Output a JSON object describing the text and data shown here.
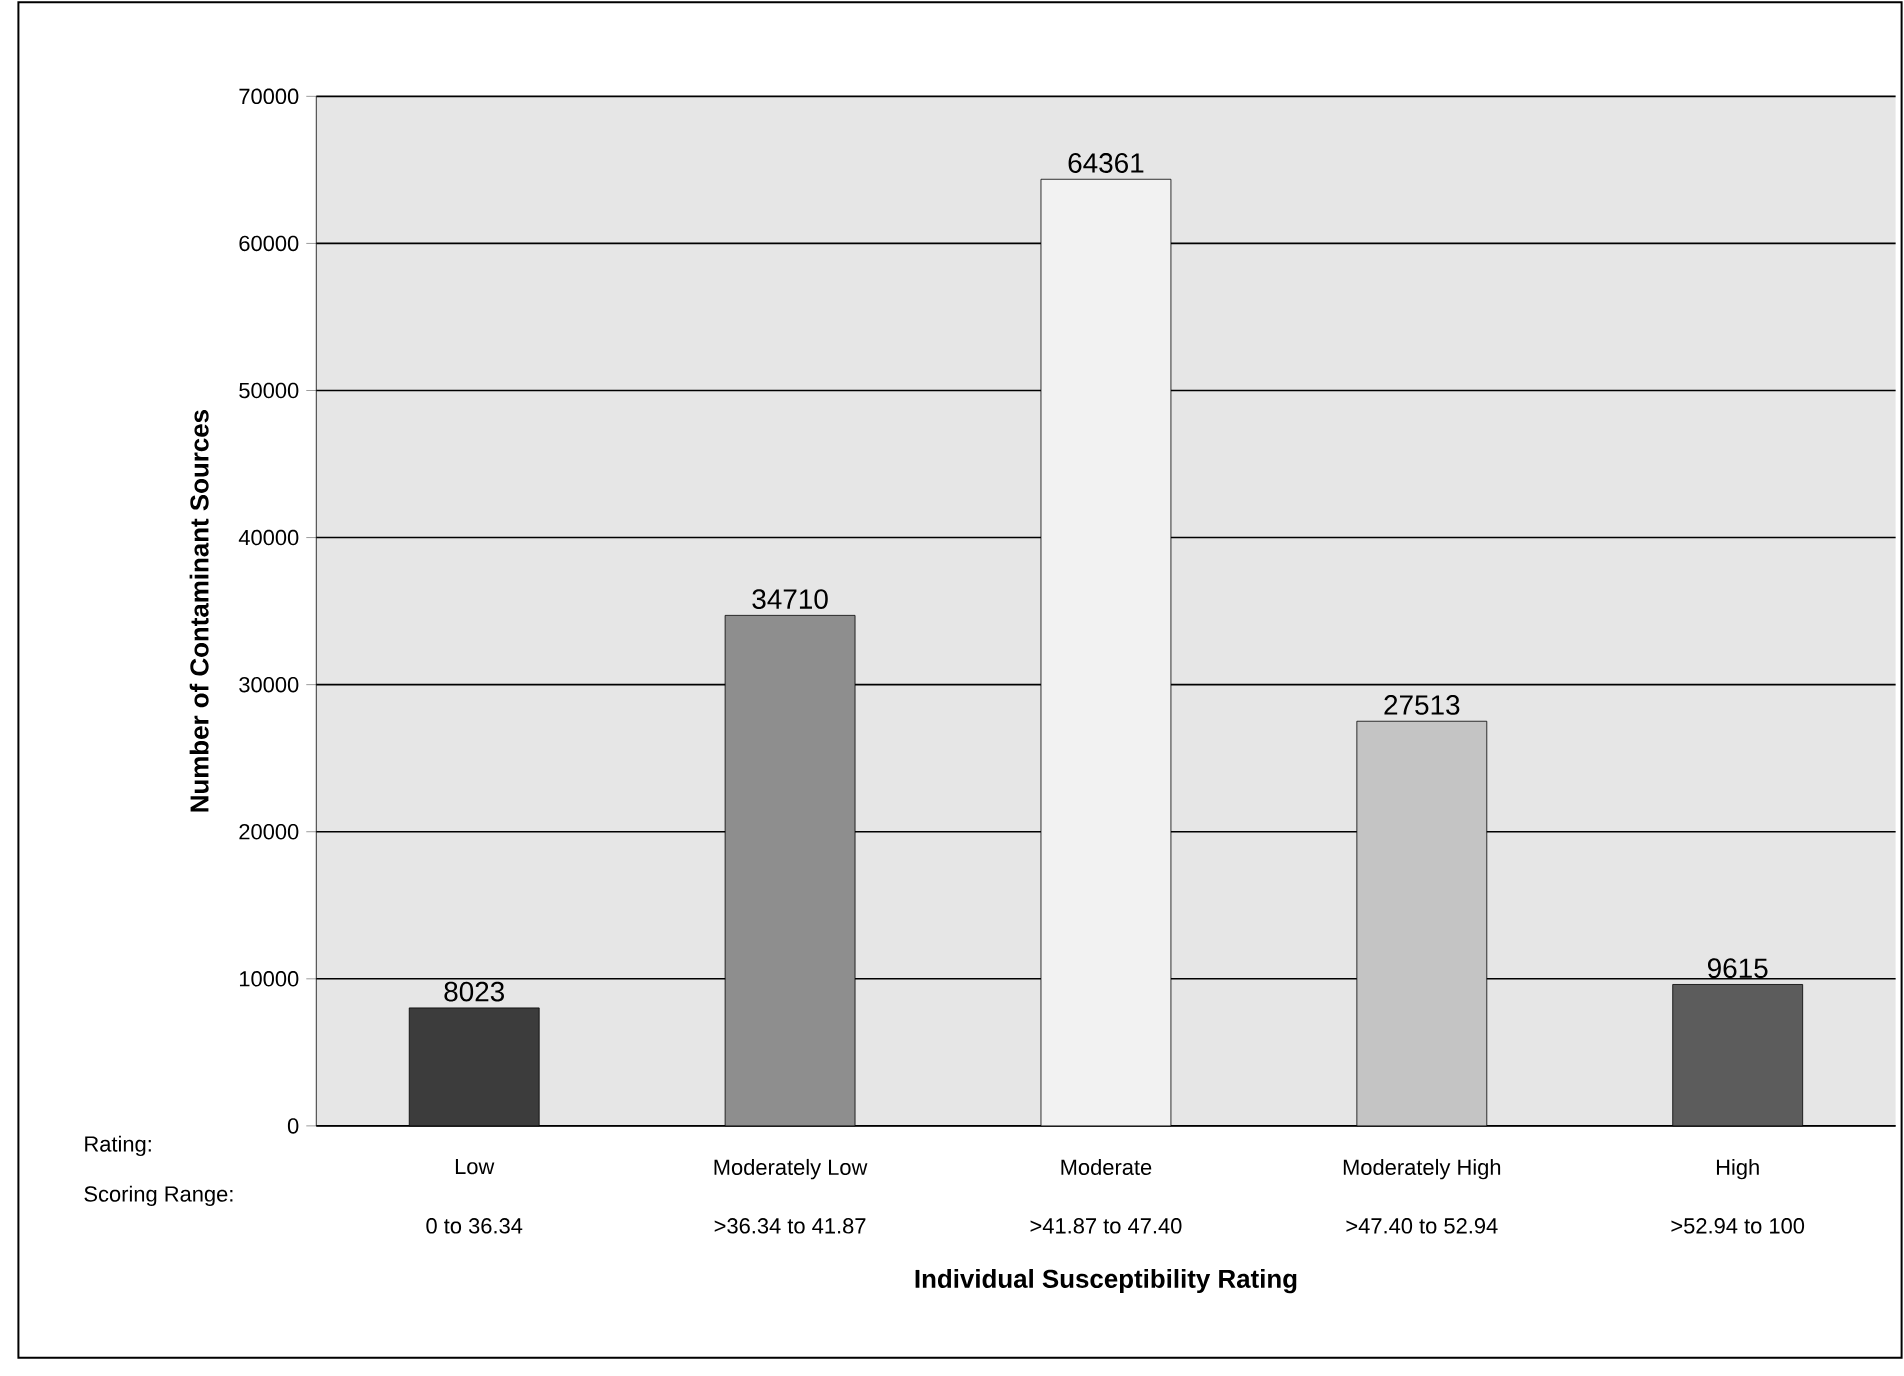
{
  "chart_data": {
    "type": "bar",
    "xlabel": "Individual Susceptibility Rating",
    "ylabel": "Number of Contaminant Sources",
    "categories": [
      "Low",
      "Moderately Low",
      "Moderate",
      "Moderately High",
      "High"
    ],
    "values": [
      8023,
      34710,
      64361,
      27513,
      9615
    ],
    "colors": [
      "#3c3c3c",
      "#8e8e8e",
      "#f2f2f2",
      "#c4c4c4",
      "#5c5c5c"
    ],
    "ylim": [
      0,
      70000
    ],
    "yticks": [
      0,
      10000,
      20000,
      30000,
      40000,
      50000,
      60000,
      70000
    ],
    "grid": "y",
    "data_labels": true,
    "annotations": [
      "Rating:",
      "Scoring Range:",
      "0 to 36.34",
      ">36.34 to 41.87",
      ">41.87 to 47.40",
      ">47.40 to 52.94",
      ">52.94 to 100"
    ]
  }
}
